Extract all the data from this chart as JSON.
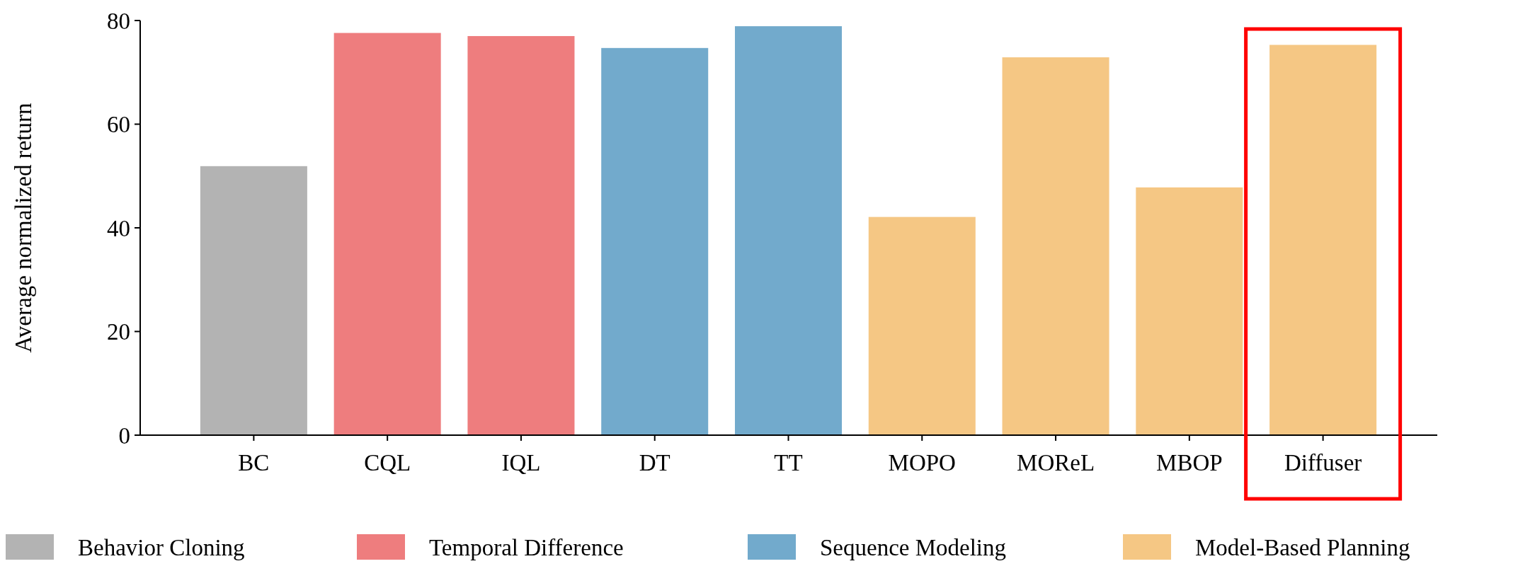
{
  "chart_data": {
    "type": "bar",
    "ylabel": "Average normalized return",
    "categories": [
      "BC",
      "CQL",
      "IQL",
      "DT",
      "TT",
      "MOPO",
      "MOReL",
      "MBOP",
      "Diffuser"
    ],
    "ylim": [
      0,
      80
    ],
    "yticks": [
      0,
      20,
      40,
      60,
      80
    ],
    "legend": "bottom",
    "grid": false,
    "series": [
      {
        "name": "Behavior Cloning",
        "color": "#b3b3b3",
        "values": [
          51.9,
          null,
          null,
          null,
          null,
          null,
          null,
          null,
          null
        ]
      },
      {
        "name": "Temporal Difference",
        "color": "#ee7d7e",
        "values": [
          null,
          77.6,
          77.0,
          null,
          null,
          null,
          null,
          null,
          null
        ]
      },
      {
        "name": "Sequence Modeling",
        "color": "#72aacc",
        "values": [
          null,
          null,
          null,
          74.7,
          78.9,
          null,
          null,
          null,
          null
        ]
      },
      {
        "name": "Model-Based Planning",
        "color": "#f5c784",
        "values": [
          null,
          null,
          null,
          null,
          null,
          42.1,
          72.9,
          47.8,
          75.3
        ]
      }
    ]
  }
}
